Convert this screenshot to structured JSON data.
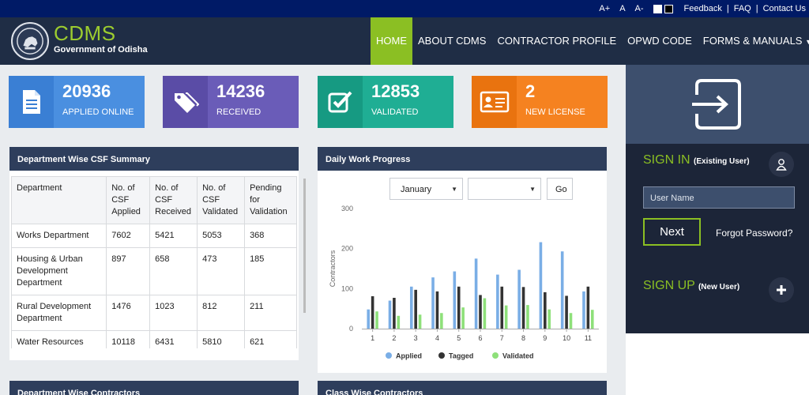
{
  "utility": {
    "font_plus": "A+",
    "font_normal": "A",
    "font_minus": "A-",
    "feedback": "Feedback",
    "faq": "FAQ",
    "contact": "Contact Us"
  },
  "brand": {
    "name": "CDMS",
    "subtitle": "Government of Odisha"
  },
  "nav": {
    "home": "HOME",
    "about": "ABOUT CDMS",
    "contractor_profile": "CONTRACTOR PROFILE",
    "opwd_code": "OPWD CODE",
    "forms": "FORMS & MANUALS"
  },
  "stats": [
    {
      "value": "20936",
      "label": "APPLIED ONLINE",
      "color": "#4a8fe0",
      "icon": "document-icon"
    },
    {
      "value": "14236",
      "label": "RECEIVED",
      "color": "#6a5cb8",
      "icon": "tags-icon"
    },
    {
      "value": "12853",
      "label": "VALIDATED",
      "color": "#1fae94",
      "icon": "checkbox-icon"
    },
    {
      "value": "2",
      "label": "NEW LICENSE",
      "color": "#f58220",
      "icon": "license-card-icon"
    }
  ],
  "csf_summary": {
    "title": "Department Wise CSF Summary",
    "headers": [
      "Department",
      "No. of CSF Applied",
      "No. of CSF Received",
      "No. of CSF Validated",
      "Pending for Validation"
    ],
    "rows": [
      [
        "Works Department",
        "7602",
        "5421",
        "5053",
        "368"
      ],
      [
        "Housing & Urban Development Department",
        "897",
        "658",
        "473",
        "185"
      ],
      [
        "Rural Development Department",
        "1476",
        "1023",
        "812",
        "211"
      ],
      [
        "Water Resources Department",
        "10118",
        "6431",
        "5810",
        "621"
      ]
    ]
  },
  "progress": {
    "title": "Daily Work Progress",
    "month_select": "January",
    "year_select": "",
    "go_label": "Go"
  },
  "chart_data": {
    "type": "bar",
    "categories": [
      "1",
      "2",
      "3",
      "4",
      "5",
      "6",
      "7",
      "8",
      "9",
      "10",
      "11"
    ],
    "series": [
      {
        "name": "Applied",
        "color": "#7aaee6",
        "values": [
          48,
          70,
          105,
          128,
          143,
          175,
          135,
          147,
          216,
          193,
          93
        ]
      },
      {
        "name": "Tagged",
        "color": "#333333",
        "values": [
          81,
          77,
          97,
          93,
          105,
          84,
          105,
          104,
          91,
          82,
          105
        ]
      },
      {
        "name": "Validated",
        "color": "#8ee07a",
        "values": [
          43,
          32,
          35,
          39,
          53,
          76,
          58,
          59,
          48,
          39,
          47
        ]
      }
    ],
    "ylabel": "Contractors",
    "ylim": [
      0,
      300
    ],
    "yticks": [
      0,
      100,
      200,
      300
    ],
    "legend": "bottom",
    "grid": false
  },
  "bottom_panels": {
    "left": "Department Wise Contractors",
    "right": "Class Wise Contractors"
  },
  "signin": {
    "title": "SIGN IN",
    "subtitle": "(Existing User)",
    "username_placeholder": "User Name",
    "next_label": "Next",
    "forgot_label": "Forgot Password?"
  },
  "signup": {
    "title": "SIGN UP",
    "subtitle": "(New User)"
  }
}
